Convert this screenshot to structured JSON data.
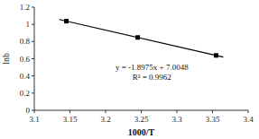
{
  "chart_data": {
    "type": "scatter",
    "xlabel": "1000/T",
    "ylabel": "lnb",
    "xlim": [
      3.1,
      3.4
    ],
    "ylim": [
      0,
      1.2
    ],
    "xticks": [
      3.1,
      3.15,
      3.2,
      3.25,
      3.3,
      3.35,
      3.4
    ],
    "yticks": [
      0,
      0.2,
      0.4,
      0.6,
      0.8,
      1,
      1.2
    ],
    "grid": false,
    "series": [
      {
        "type": "line",
        "color": "#000000",
        "x": [
          3.135,
          3.365
        ],
        "values": [
          1.0561375,
          0.6197125
        ]
      },
      {
        "type": "scatter",
        "color": "#000000",
        "marker": "square",
        "x": [
          3.145,
          3.245,
          3.355
        ],
        "values": [
          1.0371625,
          0.8474125,
          0.6386875
        ]
      }
    ],
    "annotations": [
      {
        "x": 3.265,
        "y": 0.56,
        "text": [
          "y = -1.8975x + 7.0048",
          "R² = 0.9962"
        ]
      }
    ]
  }
}
